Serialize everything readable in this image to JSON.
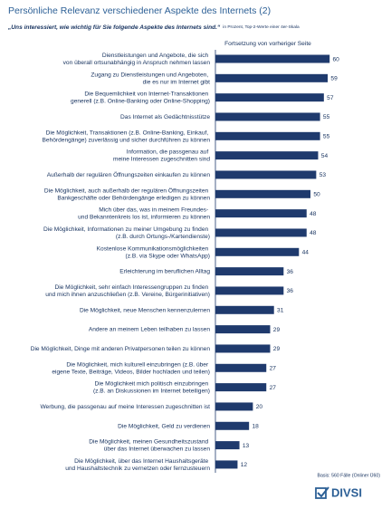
{
  "chart_data": {
    "type": "barh",
    "title": "Persönliche Relevanz verschiedener Aspekte des Internets (2)",
    "subtitle": "„Uns interessiert, wie wichtig für Sie folgende Aspekte des Internets sind.“",
    "subtitle_note": "in Prozent, Top-2-Werte einer 4er-Skala",
    "annotation": "Fortsetzung von vorheriger Seite",
    "source": "Basis: 560 Fälle (Onliner Ü60)",
    "logo": "DIVSI",
    "color": "#1f3a6d",
    "categories": [
      "Dienstleistungen und Angebote, die sich\nvon überall ortsunabhängig in Anspruch nehmen lassen",
      "Zugang zu Dienstleistungen und Angeboten,\ndie es nur im Internet gibt",
      "Die Bequemlichkeit von Internet-Transaktionen\ngenerell (z.B. Online-Banking oder Online-Shopping)",
      "Das Internet als Gedächtnisstütze",
      "Die Möglichkeit, Transaktionen (z.B. Online-Banking, Einkauf,\nBehördengänge) zuverlässig und sicher durchführen zu können",
      "Information, die passgenau auf\nmeine Interessen zugeschnitten sind",
      "Außerhalb der regulären Öffnungszeiten einkaufen zu können",
      "Die Möglichkeit, auch außerhalb der regulären Öffnungszeiten\nBankgeschäfte oder Behördengänge erledigen zu können",
      "Mich über das, was in meinem Freundes-\nund Bekanntenkreis los ist, informieren zu können",
      "Die Möglichkeit, Informationen zu meiner Umgebung zu finden\n(z.B. durch Ortungs-/Kartendienste)",
      "Kostenlose Kommunikationsmöglichkeiten\n(z.B. via Skype oder WhatsApp)",
      "Erleichterung im beruflichen Alltag",
      "Die Möglichkeit, sehr einfach Interessengruppen zu finden\nund mich ihnen anzuschließen (z.B. Vereine, Bürgerinitiativen)",
      "Die Möglichkeit, neue Menschen kennenzulernen",
      "Andere an meinem Leben teilhaben zu lassen",
      "Die Möglichkeit, Dinge mit anderen Privatpersonen teilen zu können",
      "Die Möglichkeit, mich kulturell einzubringen (z.B. über\neigene Texte, Beiträge, Videos, Bilder hochladen und teilen)",
      "Die Möglichkeit mich politisch einzubringen\n(z.B. an Diskussionen im Internet beteiligen)",
      "Werbung, die passgenau auf meine Interessen zugeschnitten ist",
      "Die Möglichkeit, Geld zu verdienen",
      "Die Möglichkeit, meinen Gesundheitszustand\nüber das Internet überwachen zu lassen",
      "Die Möglichkeit, über das Internet Haushaltsgeräte\nund Haushaltstechnik zu vernetzen oder fernzusteuern"
    ],
    "values": [
      60,
      59,
      57,
      55,
      55,
      54,
      53,
      50,
      48,
      48,
      44,
      36,
      36,
      31,
      29,
      29,
      27,
      27,
      20,
      18,
      13,
      12
    ]
  }
}
